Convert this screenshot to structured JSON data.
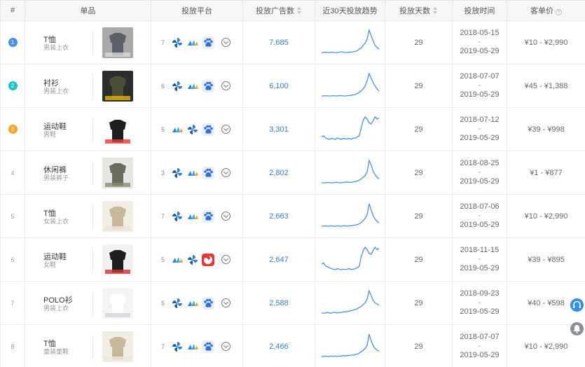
{
  "headers": {
    "rank": "#",
    "product": "单品",
    "platform": "投放平台",
    "ads": "投放广告数",
    "trend": "近30天投放趋势",
    "days": "投放天数",
    "time": "投放时间",
    "price": "客单价"
  },
  "icons": {
    "sort": "sort-icon",
    "help": "question-icon",
    "platforms": [
      "pinwheel-app-icon",
      "wave-app-icon",
      "paw-app-icon",
      "swirl-app-icon"
    ],
    "expand": "chevron-down-icon",
    "side_help": "headset-icon",
    "side_notice": "bell-icon"
  },
  "colors": {
    "accent": "#3a7bd5",
    "rank1": "#4a90e2",
    "rank2": "#1cc6c6",
    "rank3": "#f5a623",
    "trend": "#4a90e2"
  },
  "help_symbol": "?",
  "rows": [
    {
      "rank": "1",
      "name": "T恤",
      "category": "男装上衣",
      "platform_count": "7",
      "platforms": [
        "pinwheel",
        "wave",
        "paw"
      ],
      "ads": "7,685",
      "days": "29",
      "start": "2018-05-15",
      "sep": "-",
      "end": "2019-05-29",
      "price": "¥10 - ¥2,990",
      "trend": [
        3,
        3,
        4,
        3,
        3,
        4,
        3,
        3,
        3,
        4,
        5,
        4,
        3,
        3,
        4,
        4,
        5,
        6,
        8,
        12,
        15,
        22,
        28,
        38,
        62,
        48,
        34,
        22,
        16,
        12
      ]
    },
    {
      "rank": "2",
      "name": "衬衫",
      "category": "男装上衣",
      "platform_count": "6",
      "platforms": [
        "pinwheel",
        "wave",
        "paw"
      ],
      "ads": "6,100",
      "days": "29",
      "start": "2018-07-07",
      "sep": "-",
      "end": "2019-05-29",
      "price": "¥45 - ¥1,388",
      "trend": [
        2,
        2,
        3,
        2,
        2,
        2,
        3,
        2,
        2,
        3,
        3,
        2,
        2,
        3,
        3,
        4,
        5,
        6,
        9,
        12,
        16,
        22,
        30,
        45,
        65,
        52,
        40,
        30,
        22,
        15
      ]
    },
    {
      "rank": "3",
      "name": "运动鞋",
      "category": "男鞋",
      "platform_count": "5",
      "platforms": [
        "wave",
        "pinwheel",
        "paw"
      ],
      "ads": "3,301",
      "days": "29",
      "start": "2018-07-12",
      "sep": "-",
      "end": "2019-05-29",
      "price": "¥39 - ¥998",
      "trend": [
        12,
        14,
        10,
        8,
        7,
        9,
        8,
        7,
        10,
        8,
        7,
        9,
        8,
        8,
        9,
        7,
        10,
        9,
        12,
        14,
        30,
        45,
        52,
        48,
        40,
        38,
        44,
        52,
        48,
        50
      ]
    },
    {
      "rank": "4",
      "name": "休闲裤",
      "category": "男装裤子",
      "platform_count": "3",
      "platforms": [
        "pinwheel",
        "wave",
        "paw"
      ],
      "ads": "2,802",
      "days": "29",
      "start": "2018-08-25",
      "sep": "-",
      "end": "2019-05-29",
      "price": "¥1 - ¥877",
      "trend": [
        3,
        3,
        3,
        4,
        3,
        3,
        3,
        4,
        4,
        3,
        3,
        4,
        4,
        5,
        4,
        4,
        5,
        6,
        7,
        9,
        12,
        16,
        20,
        28,
        55,
        45,
        30,
        22,
        16,
        12
      ]
    },
    {
      "rank": "5",
      "name": "T恤",
      "category": "女装上衣",
      "platform_count": "7",
      "platforms": [
        "pinwheel",
        "wave",
        "paw"
      ],
      "ads": "2,663",
      "days": "29",
      "start": "2018-07-06",
      "sep": "-",
      "end": "2019-05-29",
      "price": "¥10 - ¥2,990",
      "trend": [
        4,
        4,
        5,
        4,
        4,
        5,
        4,
        4,
        5,
        4,
        4,
        5,
        5,
        4,
        5,
        5,
        6,
        7,
        8,
        10,
        13,
        18,
        24,
        32,
        60,
        45,
        30,
        22,
        16,
        12
      ]
    },
    {
      "rank": "6",
      "name": "运动鞋",
      "category": "女鞋",
      "platform_count": "5",
      "platforms": [
        "wave",
        "pinwheel",
        "swirl"
      ],
      "ads": "2,647",
      "days": "29",
      "start": "2018-11-15",
      "sep": "-",
      "end": "2019-05-29",
      "price": "¥39 - ¥895",
      "trend": [
        20,
        22,
        16,
        14,
        12,
        10,
        9,
        8,
        10,
        9,
        8,
        9,
        8,
        9,
        10,
        8,
        9,
        10,
        12,
        15,
        35,
        48,
        55,
        50,
        42,
        40,
        48,
        55,
        50,
        52
      ]
    },
    {
      "rank": "7",
      "name": "POLO衫",
      "category": "男装上衣",
      "platform_count": "5",
      "platforms": [
        "pinwheel",
        "wave",
        "paw"
      ],
      "ads": "2,588",
      "days": "29",
      "start": "2018-09-23",
      "sep": "-",
      "end": "2019-05-29",
      "price": "¥40 - ¥598",
      "trend": [
        3,
        3,
        3,
        4,
        3,
        3,
        4,
        4,
        3,
        4,
        4,
        5,
        5,
        6,
        6,
        7,
        8,
        9,
        10,
        12,
        14,
        17,
        20,
        26,
        40,
        32,
        24,
        20,
        18,
        16
      ]
    },
    {
      "rank": "8",
      "name": "T恤",
      "category": "童装童鞋",
      "platform_count": "7",
      "platforms": [
        "pinwheel",
        "wave",
        "paw"
      ],
      "ads": "2,466",
      "days": "29",
      "start": "2018-07-07",
      "sep": "-",
      "end": "2019-05-29",
      "price": "¥10 - ¥2,990",
      "trend": [
        3,
        3,
        4,
        3,
        3,
        4,
        3,
        4,
        3,
        4,
        4,
        5,
        4,
        5,
        5,
        6,
        6,
        7,
        8,
        10,
        13,
        16,
        20,
        26,
        50,
        36,
        26,
        20,
        16,
        14
      ]
    }
  ],
  "side": {
    "help": "",
    "notice": ""
  }
}
